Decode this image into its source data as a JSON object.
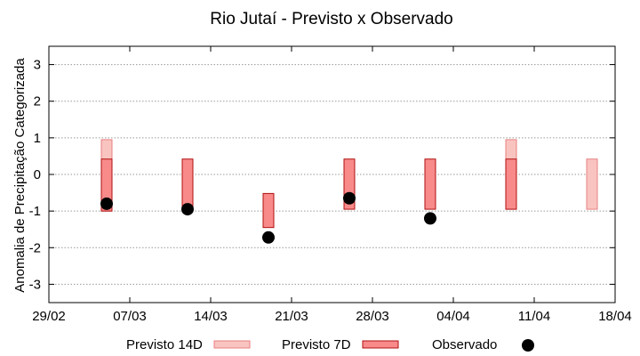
{
  "chart_data": {
    "type": "range_bar_scatter",
    "title": "Rio Jutaí - Previsto x Observado",
    "ylabel": "Anomalia de Precipitação Categorizada",
    "xlabel": "",
    "ylim": [
      -3.5,
      3.5
    ],
    "yticks": [
      3,
      2,
      1,
      0,
      -1,
      -2,
      -3
    ],
    "xlim": [
      "2024-02-29",
      "2024-04-18"
    ],
    "xticks": [
      "29/02",
      "07/03",
      "14/03",
      "21/03",
      "28/03",
      "04/04",
      "11/04",
      "18/04"
    ],
    "grid": true,
    "legend_position": "bottom",
    "legend": {
      "previsto14": "Previsto 14D",
      "previsto7": "Previsto 7D",
      "observado": "Observado"
    },
    "colors": {
      "previsto14_fill": "#f9c4c0",
      "previsto14_stroke": "#e88080",
      "previsto7_fill": "#f88a8a",
      "previsto7_stroke": "#b01010",
      "observado": "#000000",
      "grid": "#9a9a9a"
    },
    "series": [
      {
        "key": "previsto14",
        "name": "Previsto 14D",
        "points": [
          {
            "date": "2024-03-05",
            "low": -1.0,
            "high": 0.95
          },
          {
            "date": "2024-04-09",
            "low": -0.95,
            "high": 0.95
          },
          {
            "date": "2024-04-16",
            "low": -0.95,
            "high": 0.42
          }
        ]
      },
      {
        "key": "previsto7",
        "name": "Previsto 7D",
        "points": [
          {
            "date": "2024-03-05",
            "low": -1.0,
            "high": 0.42
          },
          {
            "date": "2024-03-12",
            "low": -0.95,
            "high": 0.42
          },
          {
            "date": "2024-03-19",
            "low": -1.45,
            "high": -0.52
          },
          {
            "date": "2024-03-26",
            "low": -0.95,
            "high": 0.42
          },
          {
            "date": "2024-04-02",
            "low": -0.95,
            "high": 0.42
          },
          {
            "date": "2024-04-09",
            "low": -0.95,
            "high": 0.42
          }
        ]
      },
      {
        "key": "observado",
        "name": "Observado",
        "points": [
          {
            "date": "2024-03-05",
            "value": -0.8
          },
          {
            "date": "2024-03-12",
            "value": -0.95
          },
          {
            "date": "2024-03-19",
            "value": -1.72
          },
          {
            "date": "2024-03-26",
            "value": -0.65
          },
          {
            "date": "2024-04-02",
            "value": -1.2
          }
        ]
      }
    ]
  }
}
